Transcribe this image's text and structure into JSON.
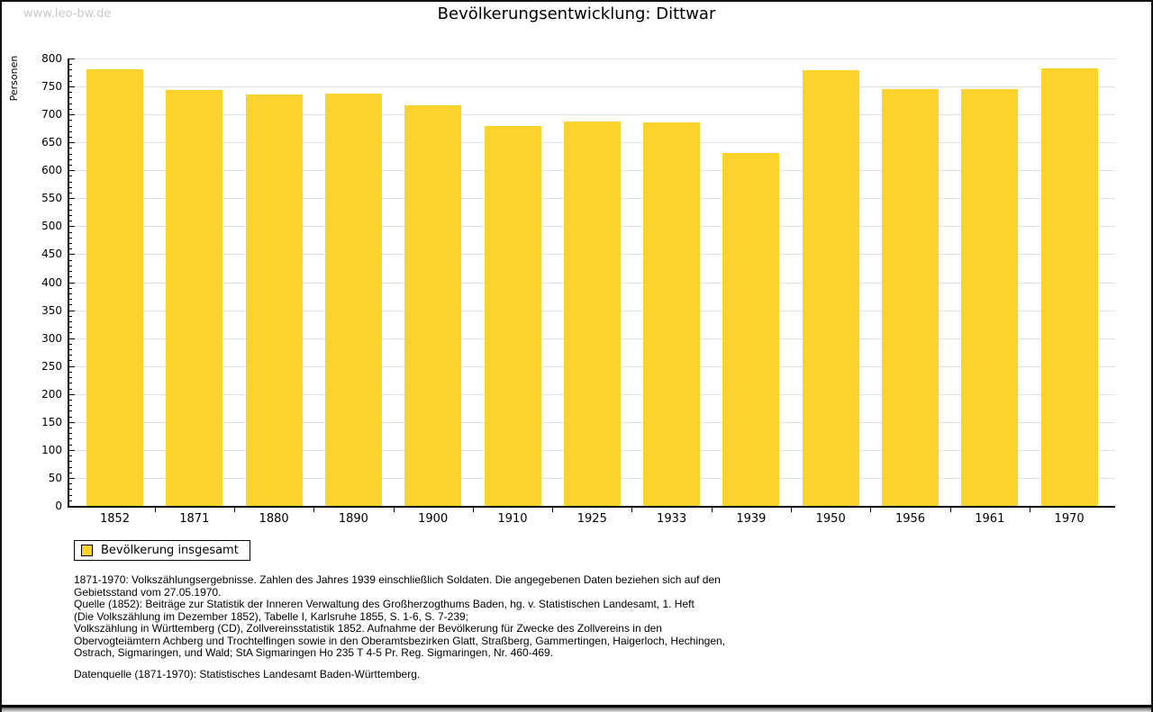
{
  "watermark": "www.leo-bw.de",
  "title": "Bevölkerungsentwicklung: Dittwar",
  "legend": {
    "label": "Bevölkerung insgesamt"
  },
  "colors": {
    "bar": "#FCD32D",
    "grid": "#e2e2e2",
    "axis": "#000000",
    "watermark": "#c9c9c9"
  },
  "chart_data": {
    "type": "bar",
    "title": "Bevölkerungsentwicklung: Dittwar",
    "categories": [
      "1852",
      "1871",
      "1880",
      "1890",
      "1900",
      "1910",
      "1925",
      "1933",
      "1939",
      "1950",
      "1956",
      "1961",
      "1970"
    ],
    "values": [
      780,
      744,
      736,
      738,
      716,
      680,
      687,
      685,
      631,
      779,
      746,
      746,
      783
    ],
    "series_name": "Bevölkerung insgesamt",
    "xlabel": "",
    "ylabel": "Personen",
    "ylim": [
      0,
      800
    ],
    "ytick_step": 50,
    "minor_tick_step": 10,
    "grid": true,
    "bar_color": "#FCD32D",
    "legend_position": "bottom-left"
  },
  "footnotes": [
    "1871-1970: Volkszählungsergebnisse. Zahlen des Jahres 1939 einschließlich Soldaten. Die angegebenen Daten beziehen sich auf den",
    "Gebietsstand vom 27.05.1970.",
    "Quelle (1852): Beiträge zur Statistik der Inneren Verwaltung des Großherzogthums Baden, hg. v. Statistischen Landesamt, 1. Heft",
    "(Die Volkszählung im Dezember 1852), Tabelle I, Karlsruhe 1855, S. 1-6, S. 7-239;",
    "Volkszählung in Württemberg (CD), Zollvereinsstatistik 1852. Aufnahme der Bevölkerung für Zwecke des Zollvereins in den",
    "Obervogteiämtern Achberg und Trochtelfingen sowie in den Oberamtsbezirken Glatt, Straßberg, Gammertingen, Haigerloch, Hechingen,",
    "Ostrach, Sigmaringen, und Wald; StA Sigmaringen Ho 235 T 4-5 Pr. Reg. Sigmaringen, Nr. 460-469."
  ],
  "datasource": "Datenquelle (1871-1970): Statistisches Landesamt Baden-Württemberg."
}
